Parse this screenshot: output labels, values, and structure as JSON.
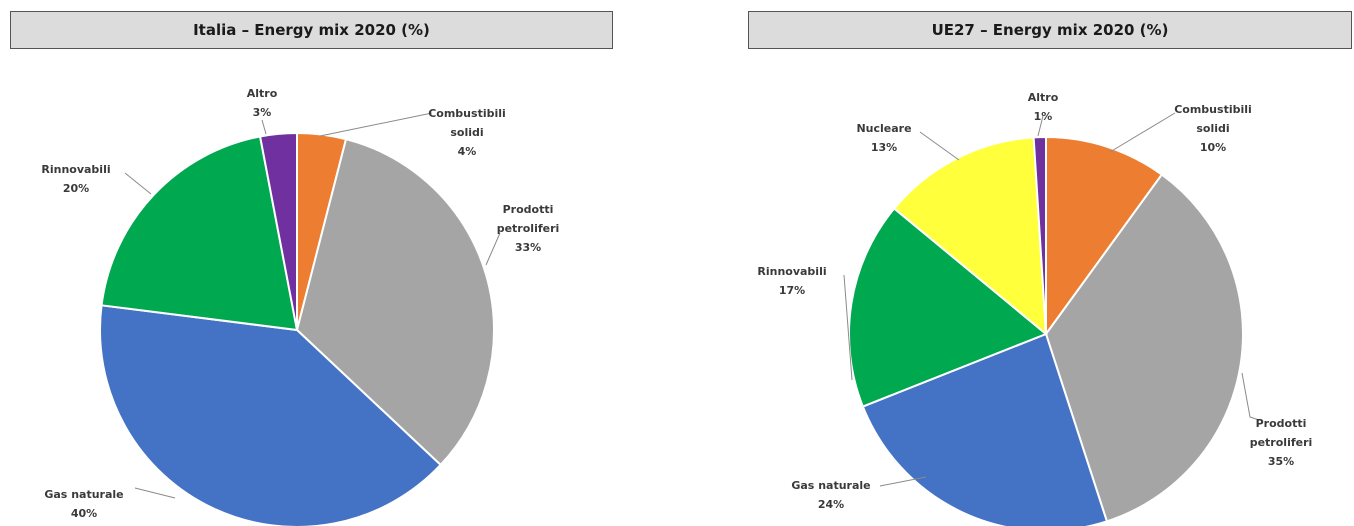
{
  "chart_data": [
    {
      "type": "pie",
      "title": "Italia – Energy mix 2020 (%)",
      "slices": [
        {
          "label": [
            "Combustibili",
            "solidi"
          ],
          "value": 4,
          "value_label": "4%",
          "color": "#ed7d31"
        },
        {
          "label": [
            "Prodotti",
            "petroliferi"
          ],
          "value": 33,
          "value_label": "33%",
          "color": "#a5a5a5"
        },
        {
          "label": [
            "Gas naturale"
          ],
          "value": 40,
          "value_label": "40%",
          "color": "#4472c4"
        },
        {
          "label": [
            "Rinnovabili"
          ],
          "value": 20,
          "value_label": "20%",
          "color": "#00a84f"
        },
        {
          "label": [
            "Altro"
          ],
          "value": 3,
          "value_label": "3%",
          "color": "#7030a0"
        }
      ]
    },
    {
      "type": "pie",
      "title": "UE27 – Energy mix 2020 (%)",
      "slices": [
        {
          "label": [
            "Combustibili",
            "solidi"
          ],
          "value": 10,
          "value_label": "10%",
          "color": "#ed7d31"
        },
        {
          "label": [
            "Prodotti",
            "petroliferi"
          ],
          "value": 35,
          "value_label": "35%",
          "color": "#a5a5a5"
        },
        {
          "label": [
            "Gas naturale"
          ],
          "value": 24,
          "value_label": "24%",
          "color": "#4472c4"
        },
        {
          "label": [
            "Rinnovabili"
          ],
          "value": 17,
          "value_label": "17%",
          "color": "#00a84f"
        },
        {
          "label": [
            "Nucleare"
          ],
          "value": 13,
          "value_label": "13%",
          "color": "#ffff3c"
        },
        {
          "label": [
            "Altro"
          ],
          "value": 1,
          "value_label": "1%",
          "color": "#7030a0"
        }
      ]
    }
  ]
}
